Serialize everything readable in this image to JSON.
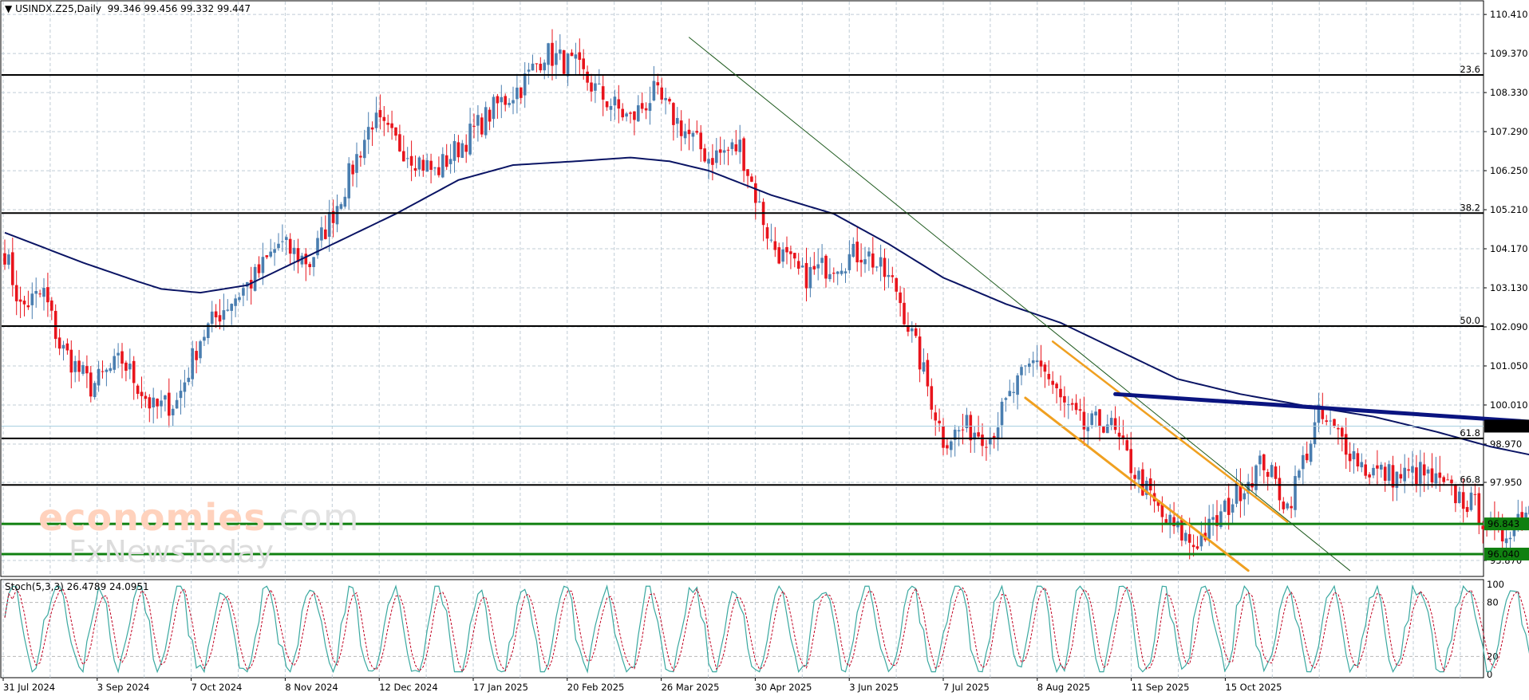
{
  "header": {
    "symbol_timeframe": "USINDX.Z25,Daily",
    "ohlc": "99.346 99.456 99.332 99.447",
    "arrow": "▼"
  },
  "stoch": {
    "label": "Stoch(5,3,3) 26.4789 24.0951",
    "levels": [
      "100",
      "80",
      "20",
      "0"
    ]
  },
  "watermark": {
    "brand": "economies",
    "tld": ".com",
    "second": "FxNewsToday"
  },
  "colors": {
    "bull": "#4a7eb0",
    "bear": "#e8141c",
    "ma": "#0a1464",
    "trend_thick": "#0a1480",
    "trend_thin": "#1e5a1e",
    "channel": "#f0a020",
    "support": "#108010",
    "fib": "#000000",
    "grid": "#c0ccd6",
    "stoch_main": "#3aa8a0",
    "stoch_signal": "#c00020"
  },
  "chart_data": {
    "type": "candlestick",
    "title": "USINDX.Z25, Daily",
    "price_axis": {
      "ticks": [
        "110.410",
        "109.370",
        "108.330",
        "107.290",
        "106.250",
        "105.210",
        "104.170",
        "103.130",
        "102.090",
        "101.050",
        "100.010",
        "98.970",
        "97.950",
        "95.870"
      ],
      "range": [
        95.6,
        110.8
      ]
    },
    "date_axis": {
      "ticks": [
        "31 Jul 2024",
        "3 Sep 2024",
        "7 Oct 2024",
        "8 Nov 2024",
        "12 Dec 2024",
        "17 Jan 2025",
        "20 Feb 2025",
        "26 Mar 2025",
        "30 Apr 2025",
        "3 Jun 2025",
        "7 Jul 2025",
        "8 Aug 2025",
        "11 Sep 2025",
        "15 Oct 2025"
      ]
    },
    "current_price": "99.447",
    "fib_levels": [
      {
        "label": "23.6",
        "price": 108.8
      },
      {
        "label": "38.2",
        "price": 105.12
      },
      {
        "label": "50.0",
        "price": 102.11
      },
      {
        "label": "61.8",
        "price": 99.12
      },
      {
        "label": "66.8",
        "price": 97.88
      }
    ],
    "support_levels": [
      {
        "label": "96.843",
        "price": 96.843
      },
      {
        "label": "96.040",
        "price": 96.04
      }
    ],
    "close_keypoints": [
      [
        0,
        104.1
      ],
      [
        4,
        102.6
      ],
      [
        10,
        103.0
      ],
      [
        14,
        101.6
      ],
      [
        22,
        100.5
      ],
      [
        30,
        101.2
      ],
      [
        38,
        99.9
      ],
      [
        44,
        100.1
      ],
      [
        50,
        101.8
      ],
      [
        56,
        102.6
      ],
      [
        64,
        103.4
      ],
      [
        70,
        104.3
      ],
      [
        78,
        103.8
      ],
      [
        86,
        105.6
      ],
      [
        94,
        107.6
      ],
      [
        100,
        107.0
      ],
      [
        110,
        106.2
      ],
      [
        118,
        107.1
      ],
      [
        126,
        108.0
      ],
      [
        132,
        108.5
      ],
      [
        138,
        109.4
      ],
      [
        146,
        109.0
      ],
      [
        152,
        108.3
      ],
      [
        160,
        107.6
      ],
      [
        166,
        108.3
      ],
      [
        174,
        107.3
      ],
      [
        180,
        106.6
      ],
      [
        188,
        106.9
      ],
      [
        196,
        104.3
      ],
      [
        204,
        103.4
      ],
      [
        212,
        103.8
      ],
      [
        220,
        104.1
      ],
      [
        228,
        103.1
      ],
      [
        234,
        101.2
      ],
      [
        240,
        99.1
      ],
      [
        246,
        99.4
      ],
      [
        252,
        99.2
      ],
      [
        258,
        100.4
      ],
      [
        264,
        101.3
      ],
      [
        270,
        100.1
      ],
      [
        276,
        99.4
      ],
      [
        282,
        99.6
      ],
      [
        288,
        98.4
      ],
      [
        296,
        97.0
      ],
      [
        304,
        96.3
      ],
      [
        310,
        96.9
      ],
      [
        316,
        97.8
      ],
      [
        322,
        98.5
      ],
      [
        328,
        97.3
      ],
      [
        336,
        99.7
      ],
      [
        342,
        99.1
      ],
      [
        348,
        98.3
      ],
      [
        356,
        98.1
      ],
      [
        362,
        98.2
      ],
      [
        368,
        97.8
      ],
      [
        376,
        97.3
      ],
      [
        382,
        96.4
      ],
      [
        388,
        97.2
      ],
      [
        394,
        97.6
      ],
      [
        400,
        98.4
      ],
      [
        406,
        98.7
      ],
      [
        412,
        99.1
      ],
      [
        418,
        98.6
      ],
      [
        424,
        98.6
      ],
      [
        430,
        98.5
      ],
      [
        434,
        99.4
      ],
      [
        438,
        99.9
      ],
      [
        444,
        99.5
      ],
      [
        446,
        99.45
      ]
    ],
    "ma_keypoints": [
      [
        0,
        104.6
      ],
      [
        20,
        103.8
      ],
      [
        34,
        103.3
      ],
      [
        40,
        103.1
      ],
      [
        50,
        103.0
      ],
      [
        62,
        103.2
      ],
      [
        80,
        104.1
      ],
      [
        100,
        105.1
      ],
      [
        116,
        106.0
      ],
      [
        130,
        106.4
      ],
      [
        146,
        106.5
      ],
      [
        160,
        106.6
      ],
      [
        170,
        106.5
      ],
      [
        180,
        106.25
      ],
      [
        196,
        105.6
      ],
      [
        212,
        105.1
      ],
      [
        226,
        104.3
      ],
      [
        240,
        103.4
      ],
      [
        256,
        102.7
      ],
      [
        270,
        102.2
      ],
      [
        286,
        101.4
      ],
      [
        300,
        100.7
      ],
      [
        316,
        100.3
      ],
      [
        332,
        100.0
      ],
      [
        350,
        99.7
      ],
      [
        366,
        99.3
      ],
      [
        380,
        98.9
      ],
      [
        394,
        98.6
      ],
      [
        404,
        98.5
      ],
      [
        420,
        98.6
      ],
      [
        432,
        98.8
      ],
      [
        438,
        98.9
      ]
    ],
    "trendlines": [
      {
        "name": "thin-downtrend",
        "from": [
          175,
          109.8
        ],
        "to": [
          344,
          95.6
        ]
      },
      {
        "name": "channel-upper",
        "from": [
          268,
          101.7
        ],
        "to": [
          328,
          96.9
        ]
      },
      {
        "name": "channel-lower",
        "from": [
          261,
          100.2
        ],
        "to": [
          318,
          95.6
        ]
      },
      {
        "name": "thick-resistance",
        "from": [
          284,
          100.3
        ],
        "to": [
          471,
          99.0
        ]
      }
    ],
    "stoch_series_note": "Stochastic(5,3,3) oscillating 0-100; last %K 26.4789, %D 24.0951"
  }
}
